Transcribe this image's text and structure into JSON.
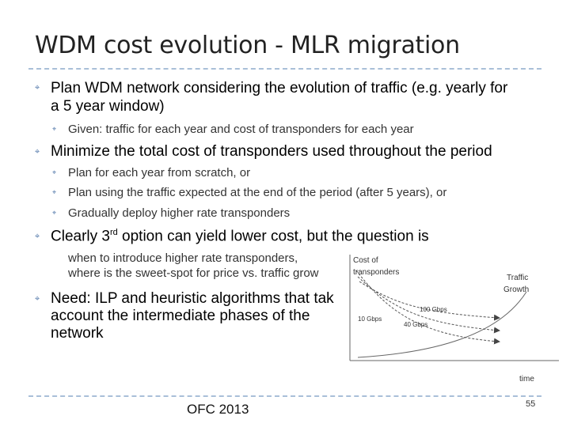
{
  "slide": {
    "title": "WDM cost evolution - MLR migration",
    "bullet1": "Plan WDM network considering the evolution of traffic (e.g. yearly for",
    "bullet1_cont": "a 5 year window)",
    "bullet1_sub1": "Given: traffic for each year and cost of transponders for each year",
    "bullet2": "Minimize the total cost of transponders used throughout the period",
    "bullet2_sub1": "Plan for each year from scratch, or",
    "bullet2_sub2": "Plan using the traffic expected at the end of the period (after 5 years), or",
    "bullet2_sub3": "Gradually deploy higher rate transponders",
    "bullet3_pre": "Clearly 3",
    "bullet3_sup": "rd",
    "bullet3_post": " option can yield lower cost, but the question is",
    "bullet3_sub1": "when to introduce higher rate transponders,",
    "bullet3_sub2": "where is the sweet-spot for price vs. traffic grow",
    "bullet4": "Need: ILP and heuristic algorithms that tak",
    "bullet4_cont1": "account the intermediate phases of the",
    "bullet4_cont2": "network"
  },
  "figure": {
    "y_label_line1": "Cost of",
    "y_label_line2": "transponders",
    "x_label": "time",
    "traffic_label_line1": "Traffic",
    "traffic_label_line2": "Growth",
    "curve_labels": [
      "100 Gbps",
      "40 Gbps",
      "10 Gbps"
    ]
  },
  "footer": {
    "conference": "OFC 2013",
    "page_number": "55"
  },
  "colors": {
    "rule": "#a9bfd8",
    "bullet": "#5b7fae"
  }
}
